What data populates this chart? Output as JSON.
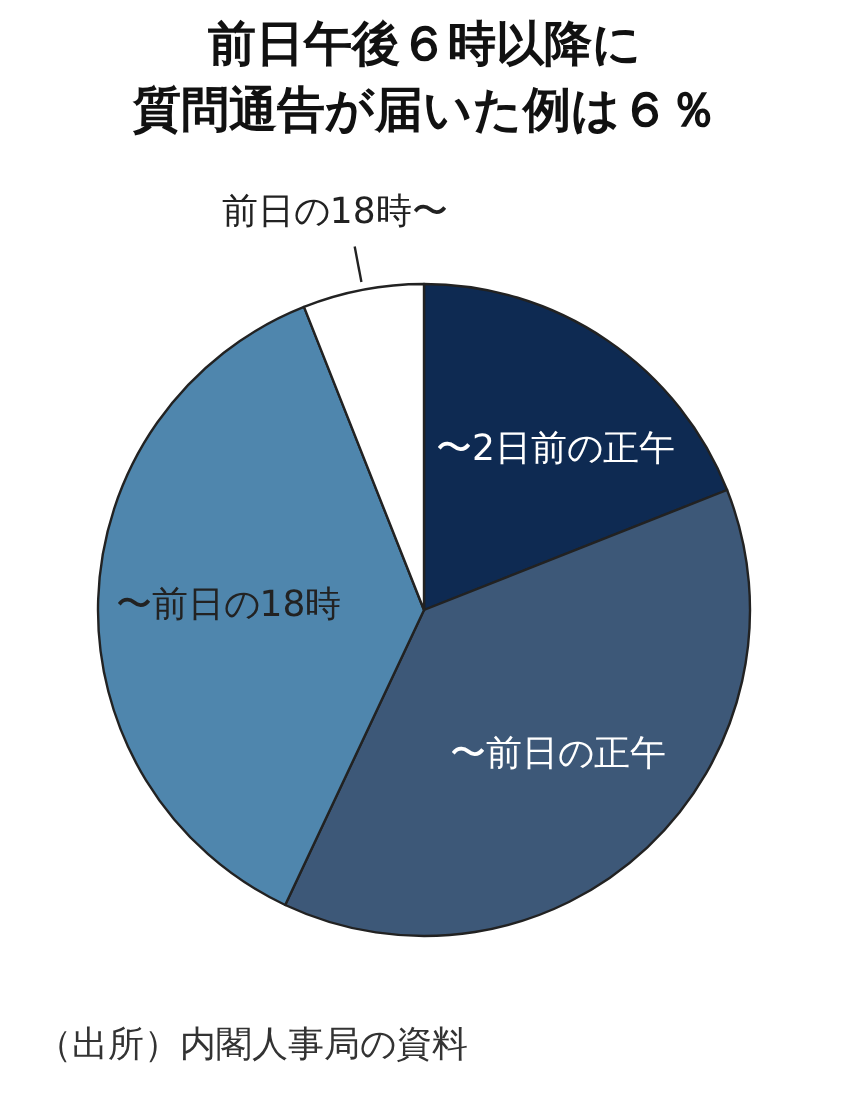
{
  "chart_data": {
    "type": "pie",
    "title": "前日午後６時以降に",
    "subtitle": "質問通告が届いた例は６％",
    "categories": [
      "〜2日前の正午",
      "〜前日の正午",
      "〜前日の18時",
      "前日の18時〜"
    ],
    "values": [
      19,
      38,
      37,
      6
    ],
    "colors": [
      "#0e2a52",
      "#3d5878",
      "#4f86ad",
      "#ffffff"
    ],
    "annotations": [
      "（出所）内閣人事局の資料"
    ]
  }
}
